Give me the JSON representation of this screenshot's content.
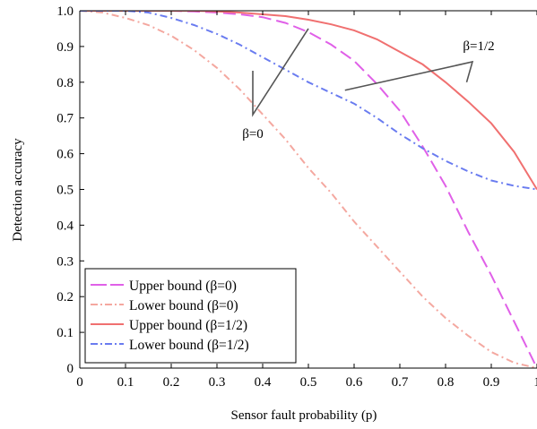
{
  "chart_data": {
    "type": "line",
    "xlabel": "Sensor fault probability (p)",
    "ylabel": "Detection accuracy",
    "xlim": [
      0,
      1
    ],
    "ylim": [
      0,
      1
    ],
    "xticks": [
      "0",
      "0.1",
      "0.2",
      "0.3",
      "0.4",
      "0.5",
      "0.6",
      "0.7",
      "0.8",
      "0.9",
      "1"
    ],
    "yticks": [
      "0",
      "0.1",
      "0.2",
      "0.3",
      "0.4",
      "0.5",
      "0.6",
      "0.7",
      "0.8",
      "0.9",
      "1.0"
    ],
    "grid": false,
    "legend_position": "bottom-left",
    "x": [
      0,
      0.05,
      0.1,
      0.15,
      0.2,
      0.25,
      0.3,
      0.35,
      0.4,
      0.45,
      0.5,
      0.55,
      0.6,
      0.65,
      0.7,
      0.75,
      0.8,
      0.85,
      0.9,
      0.95,
      1.0
    ],
    "series": [
      {
        "name": "Upper bound (β=0)",
        "color": "#e060e8",
        "dash": "long-dash",
        "values": [
          1.0,
          1.0,
          1.0,
          1.0,
          1.0,
          0.998,
          0.995,
          0.99,
          0.982,
          0.966,
          0.94,
          0.905,
          0.86,
          0.795,
          0.72,
          0.62,
          0.51,
          0.38,
          0.26,
          0.13,
          0.0
        ]
      },
      {
        "name": "Lower bound (β=0)",
        "color": "#f4a8a0",
        "dash": "dash-dot",
        "values": [
          1.0,
          0.995,
          0.98,
          0.96,
          0.93,
          0.89,
          0.84,
          0.78,
          0.71,
          0.64,
          0.56,
          0.49,
          0.41,
          0.34,
          0.27,
          0.2,
          0.14,
          0.09,
          0.045,
          0.015,
          0.0
        ]
      },
      {
        "name": "Upper bound (β=1/2)",
        "color": "#f07070",
        "dash": "solid",
        "values": [
          1.0,
          1.0,
          1.0,
          1.0,
          1.0,
          1.0,
          0.998,
          0.995,
          0.99,
          0.985,
          0.975,
          0.962,
          0.945,
          0.92,
          0.885,
          0.85,
          0.8,
          0.745,
          0.685,
          0.605,
          0.5
        ]
      },
      {
        "name": "Lower bound (β=1/2)",
        "color": "#6a7cf0",
        "dash": "dash-dot",
        "values": [
          1.0,
          1.0,
          1.0,
          0.995,
          0.98,
          0.96,
          0.935,
          0.905,
          0.87,
          0.835,
          0.8,
          0.77,
          0.74,
          0.7,
          0.655,
          0.615,
          0.58,
          0.55,
          0.525,
          0.51,
          0.5
        ]
      }
    ],
    "annotations": [
      {
        "text": "β=0",
        "points_to": [
          [
            0.38,
            0.74
          ],
          [
            0.5,
            0.95
          ]
        ]
      },
      {
        "text": "β=1/2",
        "points_to": [
          [
            0.58,
            0.77
          ],
          [
            0.85,
            0.83
          ]
        ]
      }
    ]
  },
  "legend": {
    "entries": [
      "Upper bound (β=0)",
      "Lower bound (β=0)",
      "Upper bound (β=1/2)",
      "Lower bound (β=1/2)"
    ]
  }
}
